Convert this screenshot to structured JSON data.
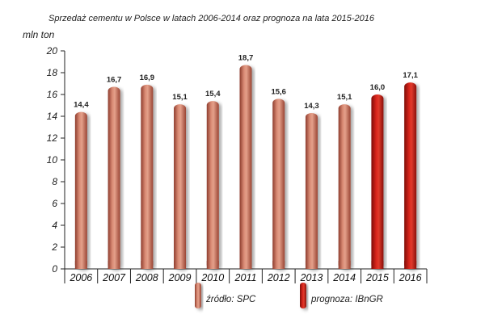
{
  "chart_data": {
    "type": "bar",
    "title": "Sprzedaż cementu w Polsce w latach 2006-2014 oraz prognoza na lata 2015-2016",
    "ylabel": "mln ton",
    "xlabel": "",
    "ylim": [
      0,
      20
    ],
    "yticks": [
      "0",
      "2",
      "4",
      "6",
      "8",
      "10",
      "12",
      "14",
      "16",
      "18",
      "20"
    ],
    "grid": false,
    "legend_position": "bottom-center",
    "categories": [
      "2006",
      "2007",
      "2008",
      "2009",
      "2010",
      "2011",
      "2012",
      "2013",
      "2014",
      "2015",
      "2016"
    ],
    "values": [
      14.4,
      16.7,
      16.9,
      15.1,
      15.4,
      18.7,
      15.6,
      14.3,
      15.1,
      16.0,
      17.1
    ],
    "value_labels": [
      "14,4",
      "16,7",
      "16,9",
      "15,1",
      "15,4",
      "18,7",
      "15,6",
      "14,3",
      "15,1",
      "16,0",
      "17,1"
    ],
    "series_kind": [
      "source",
      "source",
      "source",
      "source",
      "source",
      "source",
      "source",
      "source",
      "source",
      "forecast",
      "forecast"
    ],
    "legend": [
      {
        "key": "source",
        "label": "źródło: SPC",
        "color": "#c9705c"
      },
      {
        "key": "forecast",
        "label": "prognoza: IBnGR",
        "color": "#c41b14"
      }
    ]
  }
}
